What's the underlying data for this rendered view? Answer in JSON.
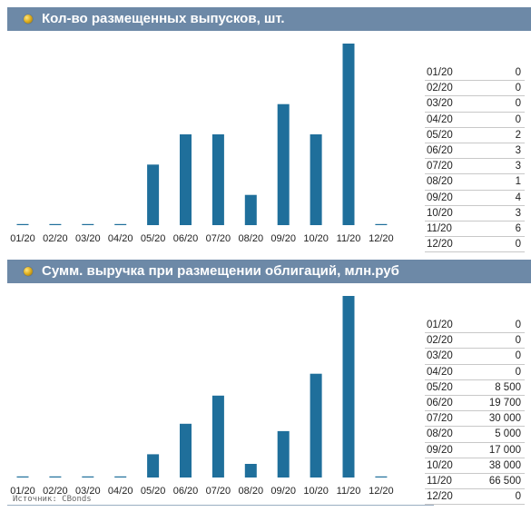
{
  "panels": [
    {
      "title": "Кол-во размещенных выпусков, шт.",
      "table_values": [
        "0",
        "0",
        "0",
        "0",
        "2",
        "3",
        "3",
        "1",
        "4",
        "3",
        "6",
        "0"
      ]
    },
    {
      "title": "Сумм. выручка при размещении облигаций, млн.руб",
      "table_values": [
        "0",
        "0",
        "0",
        "0",
        "8 500",
        "19 700",
        "30 000",
        "5 000",
        "17 000",
        "38 000",
        "66 500",
        "0"
      ]
    }
  ],
  "source": "Источник: CBonds",
  "accent_color": "#1f6f9b",
  "header_color": "#6d89a7",
  "chart_data": [
    {
      "type": "bar",
      "title": "Кол-во размещенных выпусков, шт.",
      "categories": [
        "01/20",
        "02/20",
        "03/20",
        "04/20",
        "05/20",
        "06/20",
        "07/20",
        "08/20",
        "09/20",
        "10/20",
        "11/20",
        "12/20"
      ],
      "values": [
        0,
        0,
        0,
        0,
        2,
        3,
        3,
        1,
        4,
        3,
        6,
        0
      ],
      "ylim": [
        0,
        6
      ],
      "grid": false
    },
    {
      "type": "bar",
      "title": "Сумм. выручка при размещении облигаций, млн.руб",
      "categories": [
        "01/20",
        "02/20",
        "03/20",
        "04/20",
        "05/20",
        "06/20",
        "07/20",
        "08/20",
        "09/20",
        "10/20",
        "11/20",
        "12/20"
      ],
      "values": [
        0,
        0,
        0,
        0,
        8500,
        19700,
        30000,
        5000,
        17000,
        38000,
        66500,
        0
      ],
      "ylim": [
        0,
        66500
      ],
      "grid": false
    }
  ]
}
